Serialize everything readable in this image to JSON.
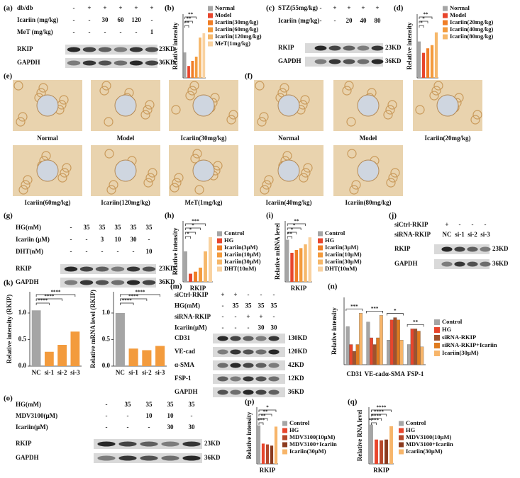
{
  "chart_data": [
    {
      "panel": "(b)",
      "type": "bar",
      "ylabel": "Relative intensity",
      "xlabel": "RKIP",
      "legend": true,
      "categories": [
        "Normal",
        "Model",
        "Icariin(30mg/kg)",
        "Icariin(60mg/kg)",
        "Icariin(120mg/kg)",
        "MeT(1mg/kg)"
      ],
      "values": [
        0.6,
        0.28,
        0.4,
        0.5,
        0.95,
        1.05
      ],
      "colors": [
        "#a5a5a5",
        "#e8452c",
        "#f07e26",
        "#f39b3d",
        "#f6b86b",
        "#f9d2a0"
      ],
      "ylim": [
        0,
        1.5
      ],
      "annotations": [
        "**",
        "**",
        "**"
      ]
    },
    {
      "panel": "(d)",
      "type": "bar",
      "ylabel": "Relative intensity",
      "xlabel": "RKIP",
      "legend": true,
      "categories": [
        "Normal",
        "Model",
        "Icariin(20mg/kg)",
        "Icariin(40mg/kg)",
        "Icariin(80mg/kg)"
      ],
      "values": [
        0.8,
        0.55,
        0.65,
        0.72,
        1.0
      ],
      "colors": [
        "#a5a5a5",
        "#e8452c",
        "#f07e26",
        "#f39b3d",
        "#f6b86b"
      ],
      "ylim": [
        0,
        1.4
      ],
      "annotations": [
        "*",
        "*",
        "**"
      ]
    },
    {
      "panel": "(h)",
      "type": "bar",
      "ylabel": "Relative intensity",
      "xlabel": "RKIP",
      "legend": true,
      "categories": [
        "Control",
        "HG",
        "Icariin(3μM)",
        "Icariin(10μM)",
        "Icariin(30μM)",
        "DHT(10nM)"
      ],
      "values": [
        0.75,
        0.2,
        0.25,
        0.35,
        0.75,
        1.1
      ],
      "colors": [
        "#a5a5a5",
        "#e8452c",
        "#f07e26",
        "#f39b3d",
        "#f6b86b",
        "#f9d2a0"
      ],
      "ylim": [
        0,
        1.5
      ],
      "annotations": [
        "*",
        "*",
        "*",
        "***"
      ]
    },
    {
      "panel": "(i)",
      "type": "bar",
      "ylabel": "Relative mRNA level",
      "xlabel": "RKIP",
      "legend": true,
      "categories": [
        "Control",
        "HG",
        "Icariin(3μM)",
        "Icariin(10μM)",
        "Icariin(30μM)",
        "DHT(10nM)"
      ],
      "values": [
        0.9,
        0.62,
        0.68,
        0.72,
        0.8,
        0.95
      ],
      "colors": [
        "#a5a5a5",
        "#e8452c",
        "#f07e26",
        "#f39b3d",
        "#f6b86b",
        "#f9d2a0"
      ],
      "ylim": [
        0,
        1.3
      ],
      "annotations": [
        "**",
        "*",
        "*",
        "**"
      ]
    },
    {
      "panel": "(k)",
      "type": "bar",
      "ylabel": "Relative intensity (RKIP)",
      "legend": false,
      "categories": [
        "NC",
        "si-1",
        "si-2",
        "si-3"
      ],
      "values": [
        1.05,
        0.27,
        0.4,
        0.65
      ],
      "colors": [
        "#a5a5a5",
        "#f39b3d",
        "#f39b3d",
        "#f39b3d"
      ],
      "ylim": [
        0,
        1.4
      ],
      "yticks": [
        {
          "value": 0,
          "label": "0.0"
        },
        {
          "value": 0.5,
          "label": "0.5"
        },
        {
          "value": 1,
          "label": "1.0"
        }
      ],
      "annotations": [
        "****",
        "****",
        "****"
      ]
    },
    {
      "panel": "(l)",
      "type": "bar",
      "ylabel": "Relative mRNA level (RKIP)",
      "legend": false,
      "categories": [
        "NC",
        "si-1",
        "si-2",
        "si-3"
      ],
      "values": [
        1.0,
        0.33,
        0.3,
        0.38
      ],
      "colors": [
        "#a5a5a5",
        "#f39b3d",
        "#f39b3d",
        "#f39b3d"
      ],
      "ylim": [
        0,
        1.4
      ],
      "yticks": [
        {
          "value": 0,
          "label": "0.0"
        },
        {
          "value": 0.5,
          "label": "0.5"
        },
        {
          "value": 1,
          "label": "1.0"
        }
      ],
      "annotations": [
        "****",
        "****",
        "****"
      ]
    },
    {
      "panel": "(n)",
      "type": "grouped-bar",
      "ylabel": "Relative intensity",
      "legend": true,
      "categories": [
        "CD31",
        "VE-cad",
        "α-SMA",
        "FSP-1"
      ],
      "series": [
        {
          "name": "Control",
          "color": "#a5a5a5",
          "values": [
            0.85,
            0.95,
            0.55,
            0.45
          ]
        },
        {
          "name": "HG",
          "color": "#e8452c",
          "values": [
            0.45,
            0.6,
            1.0,
            0.8
          ]
        },
        {
          "name": "siRNA-RKIP",
          "color": "#a0522d",
          "values": [
            0.3,
            0.45,
            1.05,
            0.8
          ]
        },
        {
          "name": "siRNA-RKIP+Icariin",
          "color": "#e07b1f",
          "values": [
            0.45,
            0.6,
            1.0,
            0.75
          ]
        },
        {
          "name": "Icariin(30μM)",
          "color": "#f7b56a",
          "values": [
            1.15,
            1.1,
            0.55,
            0.4
          ]
        }
      ],
      "ylim": [
        0,
        1.5
      ],
      "annotations": [
        "***",
        "***",
        "*",
        "**"
      ]
    },
    {
      "panel": "(p)",
      "type": "bar",
      "ylabel": "Relative intensity",
      "xlabel": "RKIP",
      "legend": true,
      "categories": [
        "Control",
        "HG",
        "MDV3100(10μM)",
        "MDV3100+Icariin",
        "Icariin(30μM)"
      ],
      "values": [
        0.95,
        0.5,
        0.48,
        0.45,
        0.92
      ],
      "colors": [
        "#a5a5a5",
        "#e8452c",
        "#b5472a",
        "#8b3a1e",
        "#f7b56a"
      ],
      "ylim": [
        0,
        1.4
      ],
      "annotations": [
        "***",
        "**",
        "**",
        "*"
      ]
    },
    {
      "panel": "(q)",
      "type": "bar",
      "ylabel": "Relative RNA level",
      "xlabel": "RKIP",
      "legend": true,
      "categories": [
        "Control",
        "HG",
        "MDV3100(10μM)",
        "MDV3100+Icariin",
        "Icariin(30μM)"
      ],
      "values": [
        0.97,
        0.6,
        0.58,
        0.6,
        0.93
      ],
      "colors": [
        "#a5a5a5",
        "#e8452c",
        "#b5472a",
        "#8b3a1e",
        "#f7b56a"
      ],
      "ylim": [
        0,
        1.4
      ],
      "annotations": [
        "****",
        "****",
        "****",
        "****"
      ]
    }
  ],
  "blots": [
    {
      "panel": "(a)",
      "conditions": [
        {
          "label": "db/db",
          "cells": [
            "-",
            "+",
            "+",
            "+",
            "+",
            "+"
          ]
        },
        {
          "label": "Icariin (mg/kg)",
          "cells": [
            "-",
            "-",
            "30",
            "60",
            "120",
            "-"
          ]
        },
        {
          "label": "MeT (mg/kg)",
          "cells": [
            "-",
            "-",
            "-",
            "-",
            "-",
            "1"
          ]
        }
      ],
      "bands": [
        {
          "protein": "RKIP",
          "size": "23KD"
        },
        {
          "protein": "GAPDH",
          "size": "36KD"
        }
      ]
    },
    {
      "panel": "(c)",
      "conditions": [
        {
          "label": "STZ(55mg/kg)",
          "cells": [
            "-",
            "+",
            "+",
            "+",
            "+"
          ]
        },
        {
          "label": "Icariin (mg/kg)",
          "cells": [
            "-",
            "-",
            "20",
            "40",
            "80"
          ]
        }
      ],
      "bands": [
        {
          "protein": "RKIP",
          "size": "23KD"
        },
        {
          "protein": "GAPDH",
          "size": "36KD"
        }
      ]
    },
    {
      "panel": "(g)",
      "conditions": [
        {
          "label": "HG(mM)",
          "cells": [
            "-",
            "35",
            "35",
            "35",
            "35",
            "35"
          ]
        },
        {
          "label": "Icariin (μM)",
          "cells": [
            "-",
            "-",
            "3",
            "10",
            "30",
            "-"
          ]
        },
        {
          "label": "DHT(nM)",
          "cells": [
            "-",
            "-",
            "-",
            "-",
            "-",
            "10"
          ]
        }
      ],
      "bands": [
        {
          "protein": "RKIP",
          "size": "23KD"
        },
        {
          "protein": "GAPDH",
          "size": "36KD"
        }
      ]
    },
    {
      "panel": "(j)",
      "conditions": [
        {
          "label": "siCtrl-RKIP",
          "cells": [
            "+",
            "-",
            "-",
            "-"
          ]
        },
        {
          "label": "siRNA-RKIP",
          "cells": [
            "NC",
            "si-1",
            "si-2",
            "si-3"
          ]
        }
      ],
      "bands": [
        {
          "protein": "RKIP",
          "size": "23KD"
        },
        {
          "protein": "GAPDH",
          "size": "36KD"
        }
      ]
    },
    {
      "panel": "(m)",
      "conditions": [
        {
          "label": "siCtrl-RKIP",
          "cells": [
            "+",
            "+",
            "-",
            "-",
            "-"
          ]
        },
        {
          "label": "HG(mM)",
          "cells": [
            "-",
            "35",
            "35",
            "35",
            "35"
          ]
        },
        {
          "label": "siRNA-RKIP",
          "cells": [
            "-",
            "-",
            "+",
            "+",
            "-"
          ]
        },
        {
          "label": "Icariin(μM)",
          "cells": [
            "-",
            "-",
            "-",
            "30",
            "30"
          ]
        }
      ],
      "bands": [
        {
          "protein": "CD31",
          "size": "130KD"
        },
        {
          "protein": "VE-cad",
          "size": "120KD"
        },
        {
          "protein": "α-SMA",
          "size": "42KD"
        },
        {
          "protein": "FSP-1",
          "size": "12KD"
        },
        {
          "protein": "GAPDH",
          "size": "36KD"
        }
      ]
    },
    {
      "panel": "(o)",
      "conditions": [
        {
          "label": "HG(mM)",
          "cells": [
            "-",
            "35",
            "35",
            "35",
            "35"
          ]
        },
        {
          "label": "MDV3100(μM)",
          "cells": [
            "-",
            "-",
            "10",
            "10",
            "-"
          ]
        },
        {
          "label": "Icariin(μM)",
          "cells": [
            "-",
            "-",
            "-",
            "30",
            "30"
          ]
        }
      ],
      "bands": [
        {
          "protein": "RKIP",
          "size": "23KD"
        },
        {
          "protein": "GAPDH",
          "size": "36KD"
        }
      ]
    }
  ],
  "histology": [
    {
      "panel": "(e)",
      "captions": [
        "Normal",
        "Model",
        "Icariin(30mg/kg)",
        "Icariin(60mg/kg)",
        "Icariin(120mg/kg)",
        "MeT(1mg/kg)"
      ]
    },
    {
      "panel": "(f)",
      "captions": [
        "Normal",
        "Model",
        "Icariin(20mg/kg)",
        "Icariin(40mg/kg)",
        "Icariin(80mg/kg)"
      ]
    }
  ]
}
